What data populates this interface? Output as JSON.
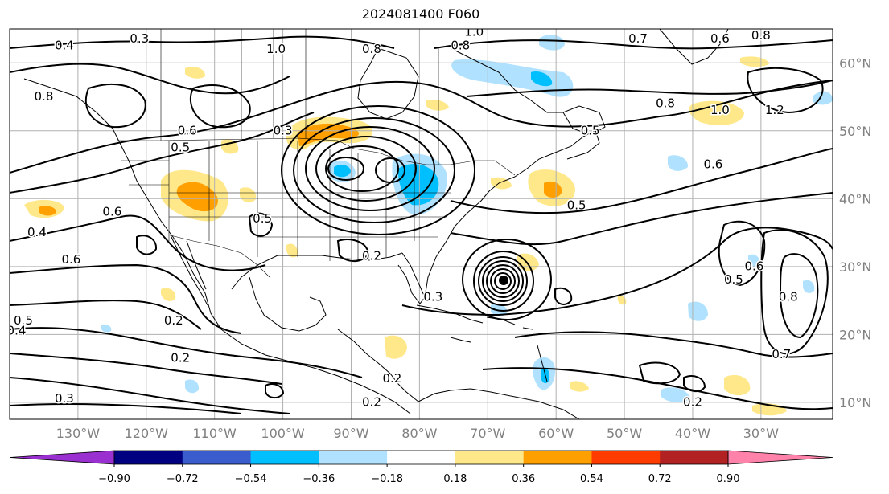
{
  "title": "2024081400 F060",
  "lon_labels": [
    "130°W",
    "120°W",
    "110°W",
    "100°W",
    "90°W",
    "80°W",
    "70°W",
    "60°W",
    "50°W",
    "40°W",
    "30°W"
  ],
  "lat_labels": [
    "60°N",
    "50°N",
    "40°N",
    "30°N",
    "20°N",
    "10°N"
  ],
  "colorbar": {
    "ticks": [
      "−0.90",
      "−0.72",
      "−0.54",
      "−0.36",
      "−0.18",
      "0.18",
      "0.36",
      "0.54",
      "0.72",
      "0.90"
    ],
    "colors": [
      "#9b30d0",
      "#000080",
      "#3a5ccc",
      "#00bfff",
      "#b0e2ff",
      "#ffffff",
      "#ffe88a",
      "#ffa000",
      "#ff3c00",
      "#b22222",
      "#ff82ab"
    ]
  },
  "contour_labels": [
    {
      "text": "0.4",
      "lon": -132,
      "lat": 62.5
    },
    {
      "text": "0.3",
      "lon": -121,
      "lat": 63.5
    },
    {
      "text": "0.8",
      "lon": -135,
      "lat": 55
    },
    {
      "text": "1.0",
      "lon": -101,
      "lat": 62
    },
    {
      "text": "0.8",
      "lon": -87,
      "lat": 62
    },
    {
      "text": "0.3",
      "lon": -100,
      "lat": 50
    },
    {
      "text": "0.6",
      "lon": -114,
      "lat": 50
    },
    {
      "text": "0.5",
      "lon": -115,
      "lat": 47.5
    },
    {
      "text": "1.0",
      "lon": -72,
      "lat": 64.5
    },
    {
      "text": "0.8",
      "lon": -74,
      "lat": 62.5
    },
    {
      "text": "0.7",
      "lon": -48,
      "lat": 63.5
    },
    {
      "text": "0.6",
      "lon": -36,
      "lat": 63.5
    },
    {
      "text": "0.8",
      "lon": -30,
      "lat": 64
    },
    {
      "text": "0.8",
      "lon": -44,
      "lat": 54
    },
    {
      "text": "1.0",
      "lon": -36,
      "lat": 53
    },
    {
      "text": "1.2",
      "lon": -28,
      "lat": 53
    },
    {
      "text": "0.5",
      "lon": -55,
      "lat": 50
    },
    {
      "text": "0.6",
      "lon": -37,
      "lat": 45
    },
    {
      "text": "0.5",
      "lon": -57,
      "lat": 39
    },
    {
      "text": "0.6",
      "lon": -125,
      "lat": 38
    },
    {
      "text": "0.4",
      "lon": -136,
      "lat": 35
    },
    {
      "text": "0.5",
      "lon": -103,
      "lat": 37
    },
    {
      "text": "0.6",
      "lon": -131,
      "lat": 31
    },
    {
      "text": "0.2",
      "lon": -87,
      "lat": 31.5
    },
    {
      "text": "0.2",
      "lon": -116,
      "lat": 22
    },
    {
      "text": "0.5",
      "lon": -138,
      "lat": 22
    },
    {
      "text": "0.4",
      "lon": -139,
      "lat": 20.5
    },
    {
      "text": "0.2",
      "lon": -115,
      "lat": 16.5
    },
    {
      "text": "0.3",
      "lon": -132,
      "lat": 10.5
    },
    {
      "text": "0.2",
      "lon": -87,
      "lat": 10
    },
    {
      "text": "0.2",
      "lon": -84,
      "lat": 13.5
    },
    {
      "text": "0.3",
      "lon": -78,
      "lat": 25.5
    },
    {
      "text": "0.2",
      "lon": -40,
      "lat": 10
    },
    {
      "text": "0.5",
      "lon": -34,
      "lat": 28
    },
    {
      "text": "0.6",
      "lon": -31,
      "lat": 30
    },
    {
      "text": "0.8",
      "lon": -26,
      "lat": 25.5
    },
    {
      "text": "0.7",
      "lon": -27,
      "lat": 17
    }
  ]
}
